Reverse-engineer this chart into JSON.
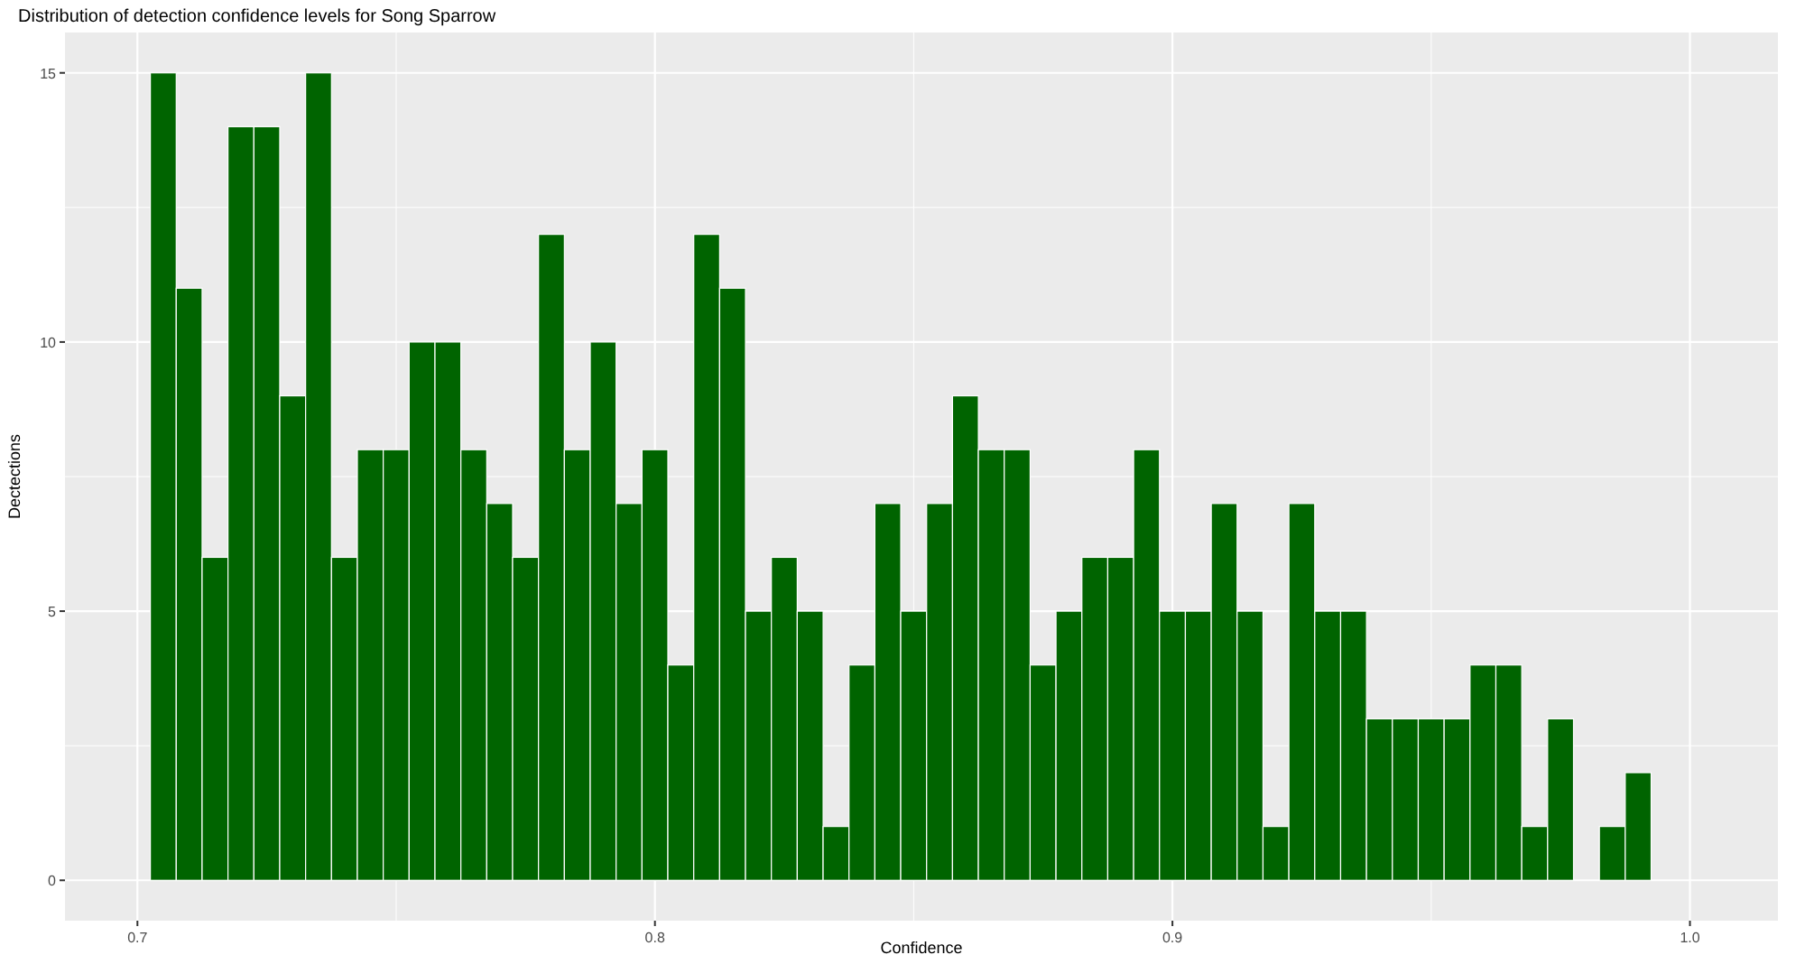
{
  "chart_data": {
    "type": "histogram",
    "title": "Distribution of detection confidence levels for Song Sparrow",
    "xlabel": "Confidence",
    "ylabel": "Dectections",
    "color": "#006400",
    "bins": [
      0.7025,
      0.7075,
      0.7125,
      0.7175,
      0.7225,
      0.7275,
      0.7325,
      0.7375,
      0.7425,
      0.7475,
      0.7525,
      0.7575,
      0.7625,
      0.7675,
      0.7725,
      0.7775,
      0.7825,
      0.7875,
      0.7925,
      0.7975,
      0.8025,
      0.8075,
      0.8125,
      0.8175,
      0.8225,
      0.8275,
      0.8325,
      0.8375,
      0.8425,
      0.8475,
      0.8525,
      0.8575,
      0.8625,
      0.8675,
      0.8725,
      0.8775,
      0.8825,
      0.8875,
      0.8925,
      0.8975,
      0.9025,
      0.9075,
      0.9125,
      0.9175,
      0.9225,
      0.9275,
      0.9325,
      0.9375,
      0.9425,
      0.9475,
      0.9525,
      0.9575,
      0.9625,
      0.9675,
      0.9725,
      0.9775,
      0.9825,
      0.9875,
      0.9925
    ],
    "values": [
      15,
      11,
      6,
      14,
      14,
      9,
      15,
      6,
      8,
      8,
      10,
      10,
      8,
      7,
      6,
      12,
      8,
      10,
      7,
      8,
      4,
      12,
      11,
      5,
      6,
      5,
      1,
      4,
      7,
      5,
      7,
      9,
      8,
      8,
      4,
      5,
      6,
      6,
      8,
      5,
      5,
      7,
      5,
      1,
      7,
      5,
      5,
      3,
      3,
      3,
      3,
      4,
      4,
      1,
      3,
      0,
      1,
      2
    ],
    "xlim": [
      0.686,
      1.017
    ],
    "xticks": [
      {
        "value": 0.7,
        "label": "0.7"
      },
      {
        "value": 0.8,
        "label": "0.8"
      },
      {
        "value": 0.9,
        "label": "0.9"
      },
      {
        "value": 1.0,
        "label": "1.0"
      }
    ],
    "ylim": [
      -0.75,
      15.75
    ],
    "yticks": [
      0,
      5,
      10,
      15
    ],
    "grid": true
  }
}
